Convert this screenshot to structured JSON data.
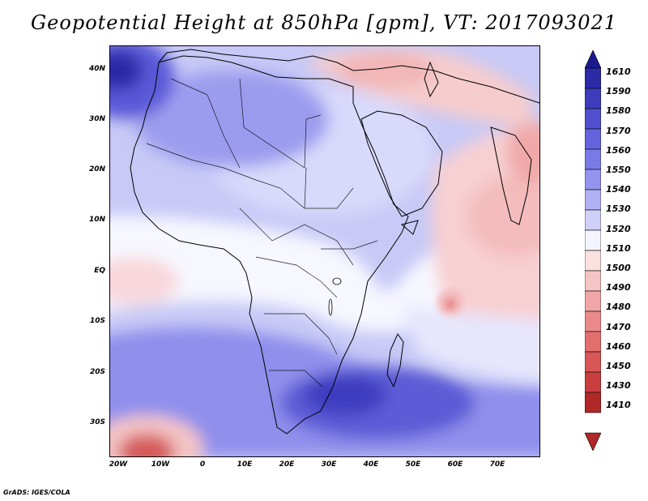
{
  "title": "Geopotential Height at 850hPa [gpm], VT: 2017093021",
  "credit": "GrADS: IGES/COLA",
  "map": {
    "lat_labels": [
      "40N",
      "30N",
      "20N",
      "10N",
      "EQ",
      "10S",
      "20S",
      "30S"
    ],
    "lon_labels": [
      "20W",
      "10W",
      "0",
      "10E",
      "20E",
      "30E",
      "40E",
      "50E",
      "60E",
      "70E"
    ]
  },
  "colorbar": {
    "levels": [
      "1610",
      "1590",
      "1580",
      "1570",
      "1560",
      "1550",
      "1540",
      "1530",
      "1520",
      "1510",
      "1500",
      "1490",
      "1480",
      "1470",
      "1460",
      "1450",
      "1430",
      "1410"
    ],
    "colors": [
      "#1a1a8c",
      "#2b2ba6",
      "#3c3cbd",
      "#4f4fcf",
      "#6464dc",
      "#7a7ae6",
      "#9494ee",
      "#b0b0f4",
      "#cfcff9",
      "#f4f4ff",
      "#fbe0e0",
      "#f6c4c4",
      "#f0a6a6",
      "#ea8a8a",
      "#e26e6e",
      "#d85656",
      "#c83e3e",
      "#b02828"
    ]
  }
}
